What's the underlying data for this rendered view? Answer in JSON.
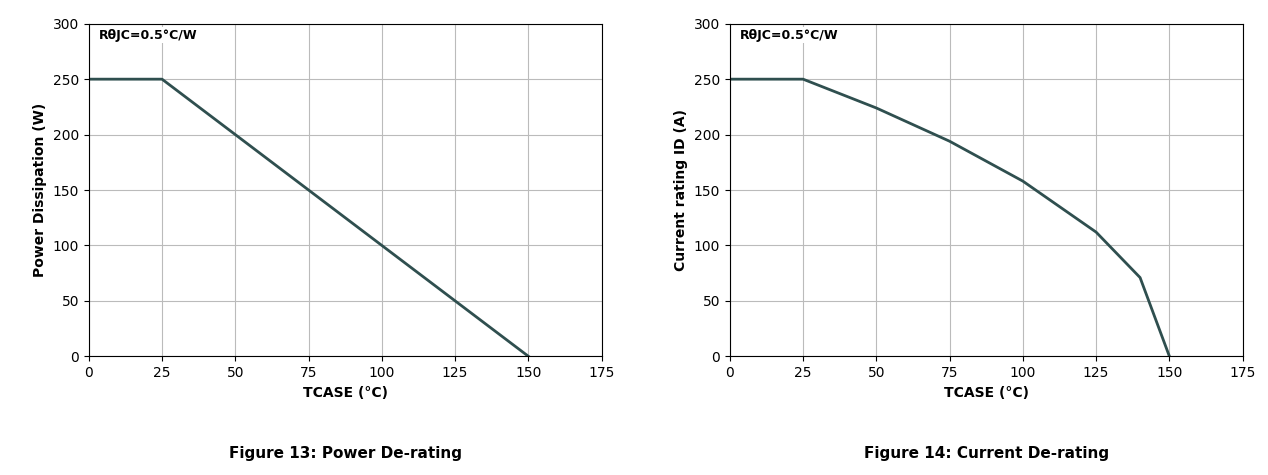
{
  "chart_data": [
    {
      "type": "line",
      "title": "Figure 13: Power De-rating",
      "x_label": "TCASE (°C)",
      "y_label": "Power Dissipation (W)",
      "annotation": "RθJC=0.5°C/W",
      "x": [
        0,
        25,
        150
      ],
      "values": [
        250,
        250,
        0
      ],
      "color": "#2f4f4f",
      "xlim": [
        0,
        175
      ],
      "xticks": [
        0,
        25,
        50,
        75,
        100,
        125,
        150,
        175
      ],
      "ylim": [
        0,
        300
      ],
      "yticks": [
        0,
        50,
        100,
        150,
        200,
        250,
        300
      ],
      "grid": true
    },
    {
      "type": "line",
      "title": "Figure 14: Current De-rating",
      "x_label": "TCASE (°C)",
      "y_label": "Current rating ID (A)",
      "annotation": "RθJC=0.5°C/W",
      "x": [
        0,
        25,
        50,
        75,
        100,
        125,
        140,
        150
      ],
      "values": [
        250,
        250,
        224,
        194,
        158,
        112,
        71,
        0
      ],
      "color": "#2f4f4f",
      "xlim": [
        0,
        175
      ],
      "xticks": [
        0,
        25,
        50,
        75,
        100,
        125,
        150,
        175
      ],
      "ylim": [
        0,
        300
      ],
      "yticks": [
        0,
        50,
        100,
        150,
        200,
        250,
        300
      ],
      "grid": true
    }
  ]
}
